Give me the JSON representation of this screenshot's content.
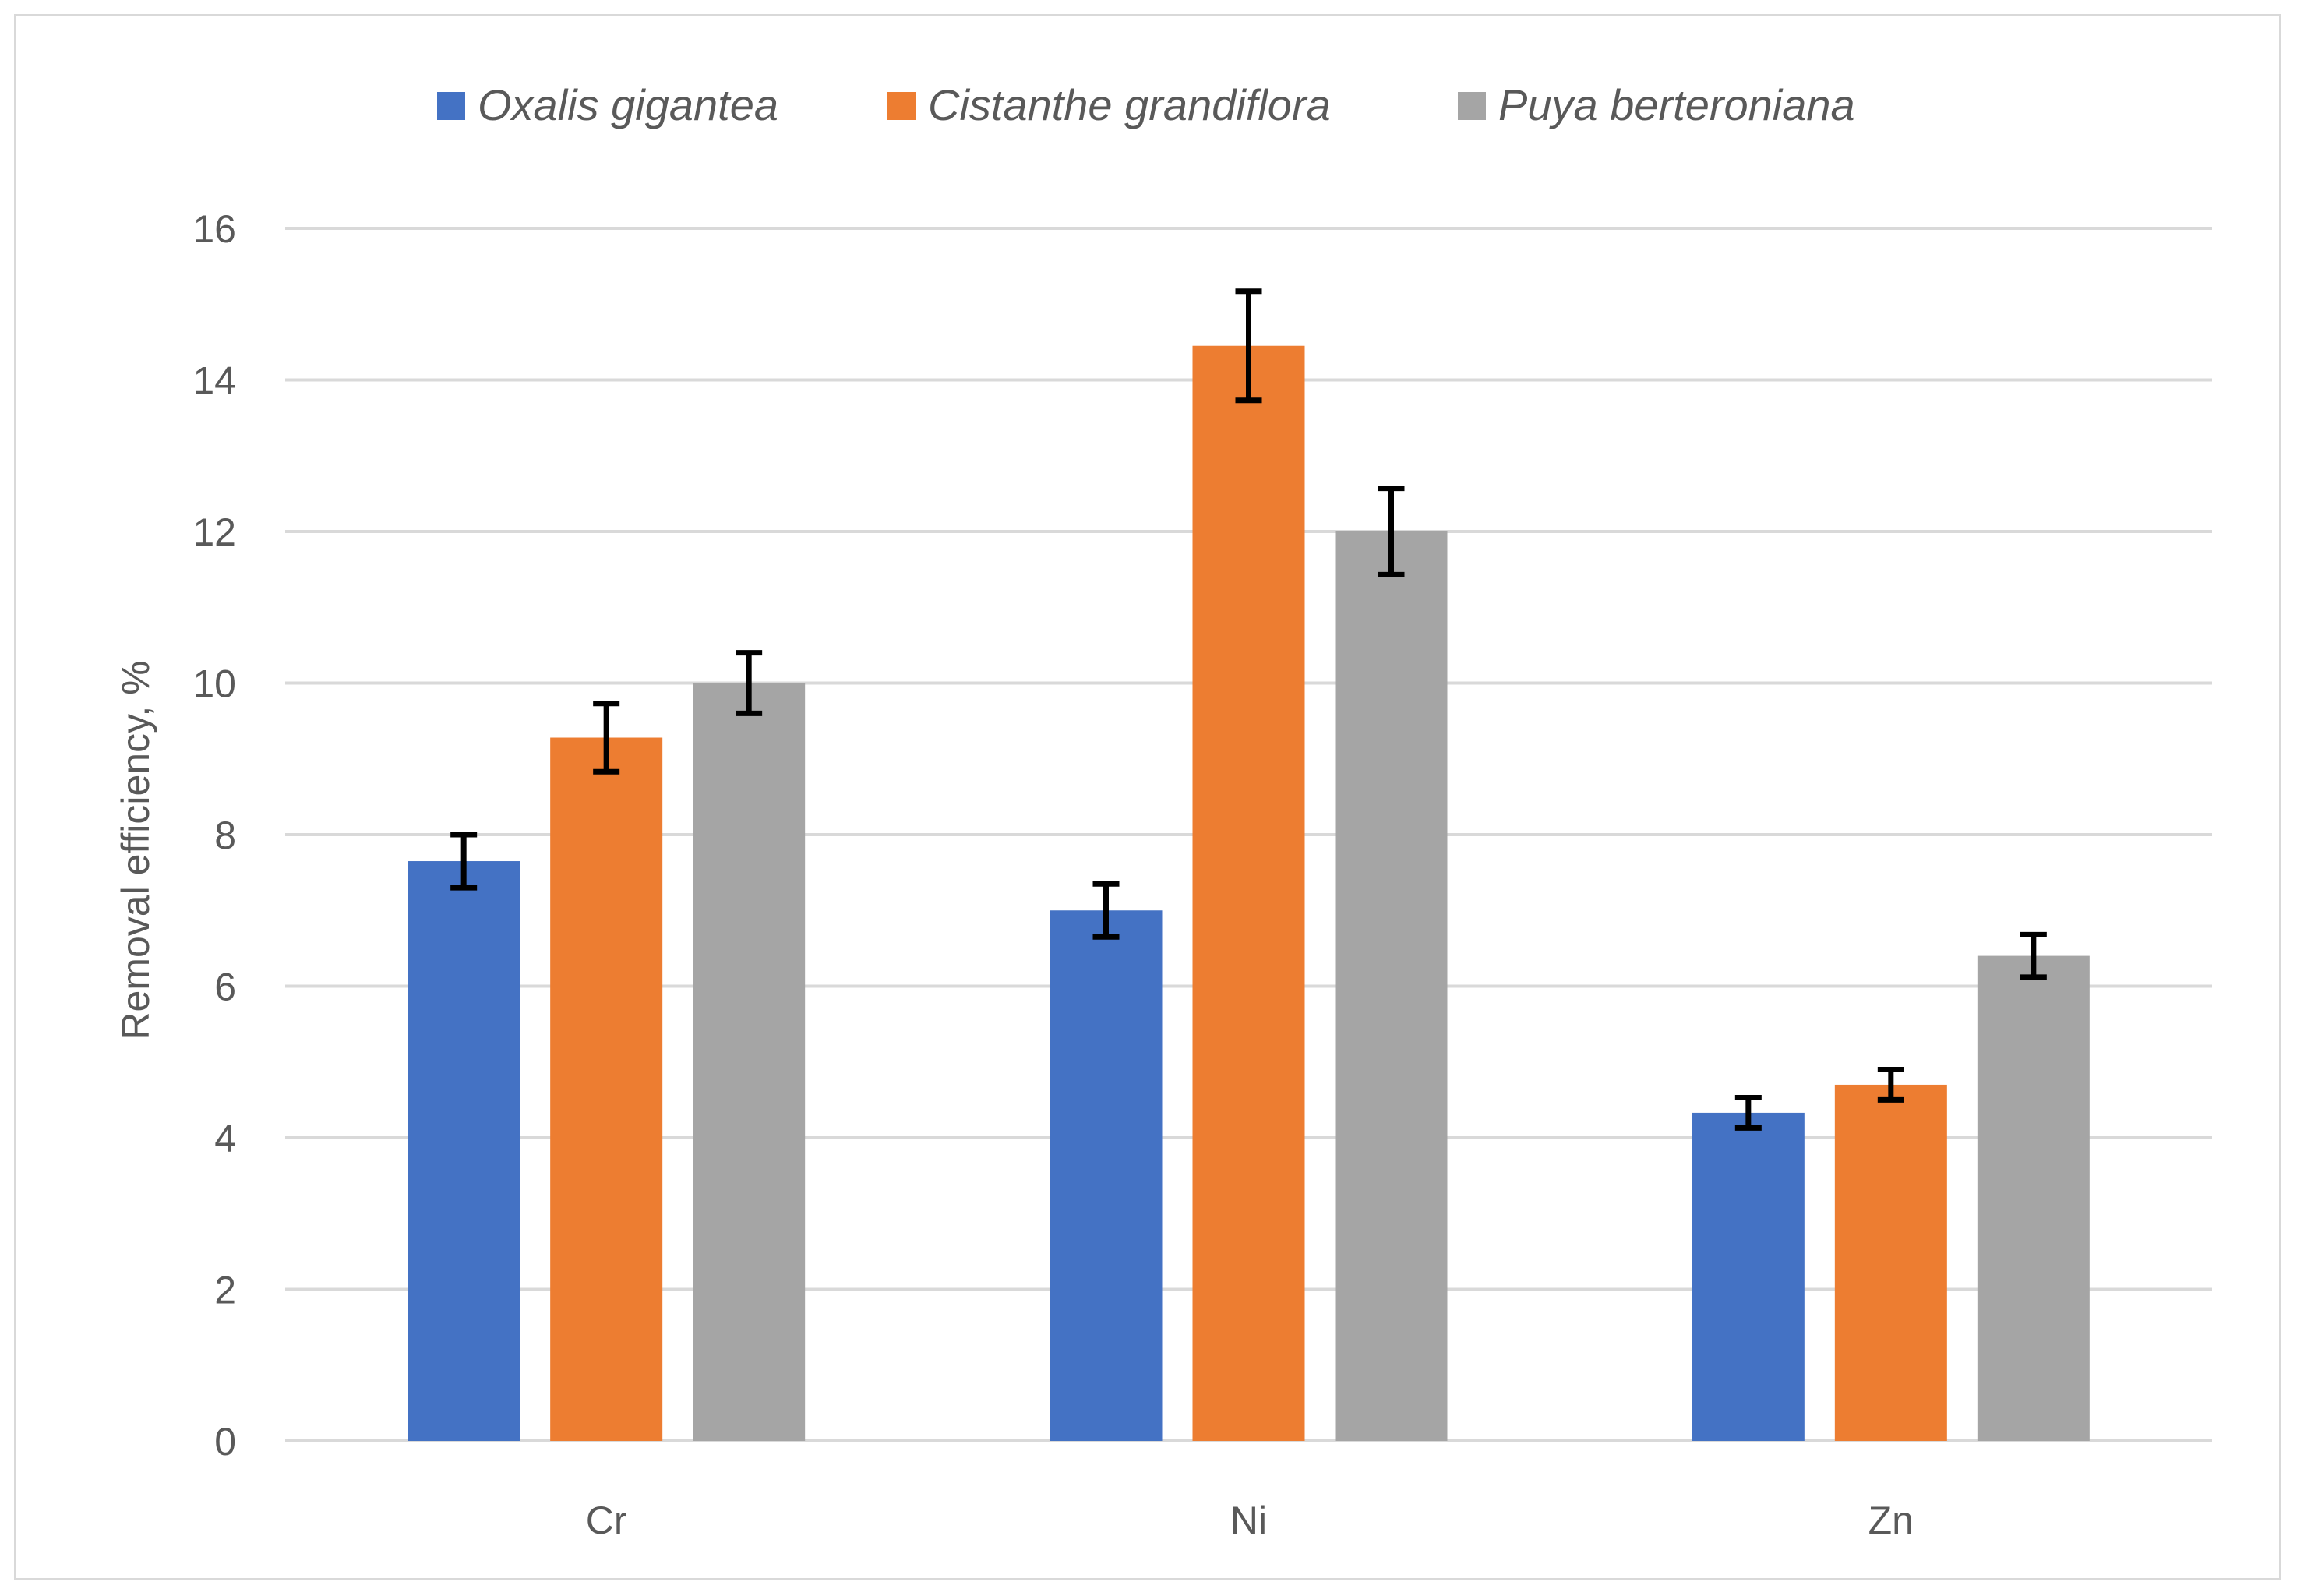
{
  "chart_data": {
    "type": "bar",
    "title": "",
    "xlabel": "",
    "ylabel": "Removal efficiency, %",
    "ylim": [
      0,
      16
    ],
    "yticks": [
      0,
      2,
      4,
      6,
      8,
      10,
      12,
      14,
      16
    ],
    "grid": true,
    "legend_position": "top",
    "categories": [
      "Cr",
      "Ni",
      "Zn"
    ],
    "series": [
      {
        "name": "Oxalis gigantea",
        "color": "#4472c4",
        "values": [
          7.65,
          7.0,
          4.33
        ],
        "errors": [
          0.35,
          0.35,
          0.2
        ]
      },
      {
        "name": "Cistanthe grandiflora",
        "color": "#ed7d31",
        "values": [
          9.28,
          14.45,
          4.7
        ],
        "errors": [
          0.45,
          0.72,
          0.2
        ]
      },
      {
        "name": "Puya berteroniana",
        "color": "#a5a5a5",
        "values": [
          10.0,
          12.0,
          6.4
        ],
        "errors": [
          0.4,
          0.57,
          0.28
        ]
      }
    ],
    "gridline_color": "#d9d9d9",
    "errorbar_color": "#000000"
  }
}
